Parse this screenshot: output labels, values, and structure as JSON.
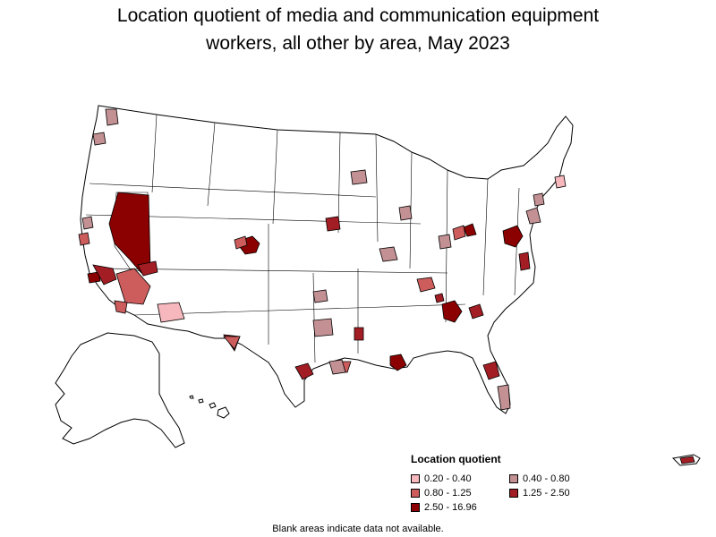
{
  "title": {
    "line1": "Location quotient of media and communication equipment",
    "line2": "workers, all other by area, May 2023"
  },
  "legend": {
    "title": "Location quotient",
    "items": [
      {
        "label": "0.20 - 0.40",
        "color": "#f6b8bd"
      },
      {
        "label": "0.40 - 0.80",
        "color": "#c39093"
      },
      {
        "label": "0.80 - 1.25",
        "color": "#cd5c5c"
      },
      {
        "label": "1.25 - 2.50",
        "color": "#a31d24"
      },
      {
        "label": "2.50 - 16.96",
        "color": "#8b0000"
      }
    ]
  },
  "footnote": "Blank areas indicate data not available.",
  "colors": {
    "boundary": "#000000",
    "no_data": "#ffffff",
    "ql_020_040": "#f6b8bd",
    "ql_040_080": "#c39093",
    "ql_080_125": "#cd5c5c",
    "ql_125_250": "#a31d24",
    "ql_250_1696": "#8b0000"
  }
}
